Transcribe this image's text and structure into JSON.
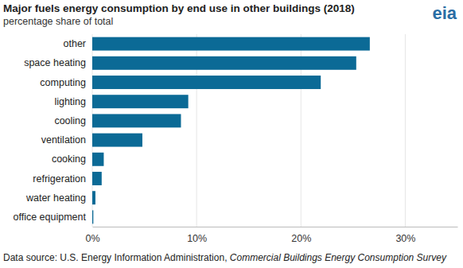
{
  "chart_data": {
    "type": "bar",
    "orientation": "horizontal",
    "title": "Major fuels energy consumption by end use in other buildings (2018)",
    "subtitle": "percentage share of total",
    "logo": "eia",
    "source": {
      "prefix": "Data source: U.S. Energy Information Administration, ",
      "publication": "Commercial Buildings Energy Consumption Survey"
    },
    "categories": [
      "other",
      "space heating",
      "computing",
      "lighting",
      "cooling",
      "ventilation",
      "cooking",
      "refrigeration",
      "water heating",
      "office equipment"
    ],
    "values": [
      26.6,
      25.3,
      21.9,
      9.2,
      8.5,
      4.8,
      1.1,
      0.9,
      0.3,
      0.1
    ],
    "color": "#0b6a96",
    "xlim": [
      0,
      35
    ],
    "xticks": [
      {
        "value": 0,
        "label": "0%"
      },
      {
        "value": 10,
        "label": "10%"
      },
      {
        "value": 20,
        "label": "20%"
      },
      {
        "value": 30,
        "label": "30%"
      }
    ],
    "grid": true
  }
}
